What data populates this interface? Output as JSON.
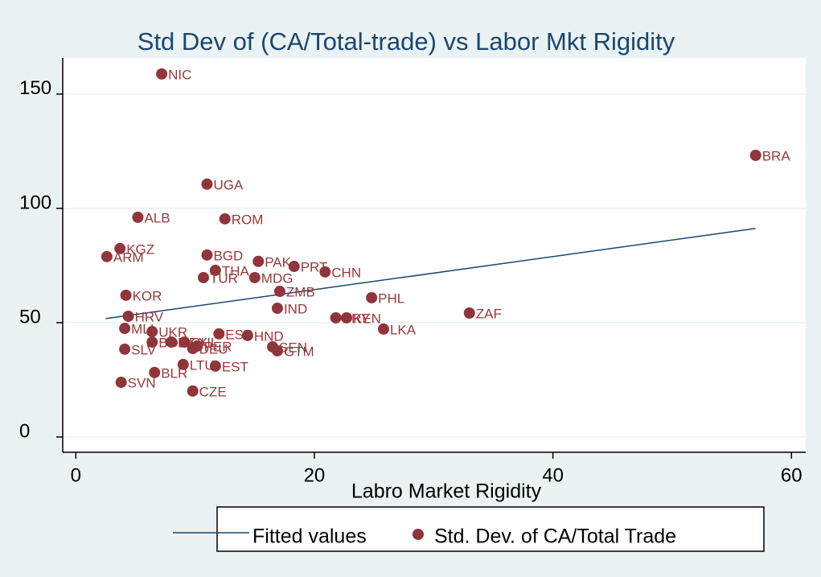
{
  "chart_data": {
    "type": "scatter",
    "title": "Std Dev of (CA/Total-trade) vs Labor Mkt Rigidity",
    "x_label": "Labro Market Rigidity",
    "xlim": [
      -1.1,
      61.2
    ],
    "ylim": [
      -6.7,
      165.8
    ],
    "xticks": [
      0,
      20,
      40,
      60
    ],
    "yticks": [
      0,
      50,
      100,
      150
    ],
    "grid": true,
    "series": [
      {
        "name": "Fitted values",
        "type": "line",
        "color": "#1a476f",
        "x": [
          2.5,
          57
        ],
        "values": [
          51.8,
          91.2
        ]
      },
      {
        "name": "Std. Dev. of CA/Total Trade",
        "type": "scatter",
        "color": "#90353b",
        "labels": [
          "NIC",
          "BRA",
          "UGA",
          "ALB",
          "ROM",
          "KGZ",
          "ARM",
          "BGD",
          "PAK",
          "THA",
          "PRT",
          "CHN",
          "TUR",
          "MDG",
          "ZMB",
          "KOR",
          "PHL",
          "IND",
          "ZAF",
          "HRV",
          "PRY",
          "KEN",
          "LKA",
          "MLI",
          "UKR",
          "BOL",
          "MEX",
          "CHL",
          "PER",
          "ESP",
          "HND",
          "SEN",
          "GTM",
          "SLV",
          "DEU",
          "LTU",
          "EST",
          "BLR",
          "SVN",
          "CZE"
        ],
        "x": [
          7.2,
          57.0,
          11.0,
          5.2,
          12.5,
          3.7,
          2.6,
          11.0,
          15.3,
          11.7,
          18.3,
          20.9,
          10.7,
          15.0,
          17.1,
          4.2,
          24.8,
          16.9,
          33.0,
          4.4,
          21.8,
          22.7,
          25.8,
          4.1,
          6.4,
          6.4,
          8.0,
          9.1,
          10.2,
          12.0,
          14.4,
          16.5,
          16.9,
          4.1,
          9.8,
          9.0,
          11.7,
          6.6,
          3.8,
          9.8
        ],
        "values": [
          158.8,
          123.2,
          110.6,
          96.1,
          95.4,
          82.4,
          78.9,
          79.6,
          76.8,
          72.9,
          74.6,
          72.2,
          69.7,
          69.7,
          63.7,
          62.0,
          60.9,
          56.3,
          54.2,
          52.8,
          52.1,
          52.1,
          47.2,
          47.5,
          46.1,
          41.5,
          41.5,
          41.5,
          39.8,
          45.1,
          44.4,
          39.4,
          37.7,
          38.4,
          38.7,
          31.7,
          31.0,
          28.2,
          23.9,
          20.1
        ]
      }
    ]
  }
}
